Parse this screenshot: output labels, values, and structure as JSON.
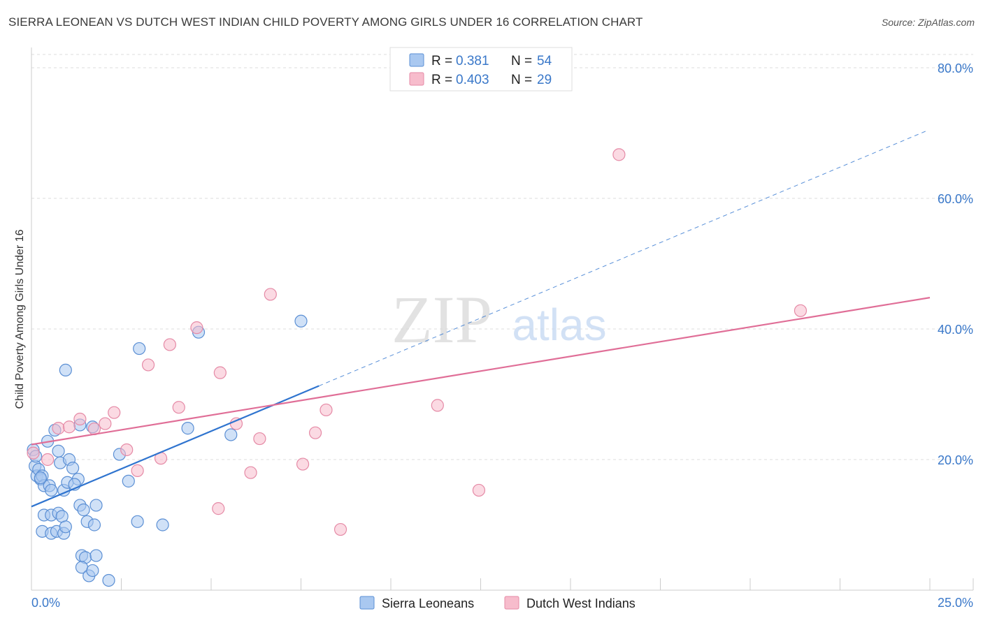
{
  "title": "SIERRA LEONEAN VS DUTCH WEST INDIAN CHILD POVERTY AMONG GIRLS UNDER 16 CORRELATION CHART",
  "source": "Source: ZipAtlas.com",
  "watermark": {
    "zip": "ZIP",
    "atlas": "atlas"
  },
  "colors": {
    "blue_fill": "#a9c8f0",
    "blue_stroke": "#5b8fd4",
    "blue_line": "#2f74cf",
    "pink_fill": "#f7bccc",
    "pink_stroke": "#e58aa6",
    "pink_line": "#e06e97",
    "axis_label": "#3a78c9",
    "grid": "#dddddd"
  },
  "legend": {
    "r_label": "R =",
    "n_label": "N =",
    "rows": [
      {
        "r": "0.381",
        "n": "54"
      },
      {
        "r": "0.403",
        "n": "29"
      }
    ]
  },
  "chart_data": {
    "type": "scatter",
    "title": "SIERRA LEONEAN VS DUTCH WEST INDIAN CHILD POVERTY AMONG GIRLS UNDER 16 CORRELATION CHART",
    "xlabel": "",
    "ylabel": "Child Poverty Among Girls Under 16",
    "xlim": [
      0,
      25
    ],
    "ylim": [
      0,
      80
    ],
    "x_tick_labels": [
      "0.0%",
      "25.0%"
    ],
    "y_ticks": [
      20,
      40,
      60,
      80
    ],
    "y_tick_labels": [
      "20.0%",
      "40.0%",
      "60.0%",
      "80.0%"
    ],
    "series": [
      {
        "name": "Sierra Leoneans",
        "color": "blue",
        "points": [
          [
            0.05,
            21.5
          ],
          [
            0.1,
            19.0
          ],
          [
            0.15,
            17.5
          ],
          [
            0.2,
            18.5
          ],
          [
            0.25,
            17.0
          ],
          [
            0.3,
            17.5
          ],
          [
            0.35,
            16.0
          ],
          [
            0.45,
            22.8
          ],
          [
            0.5,
            16.0
          ],
          [
            0.55,
            15.3
          ],
          [
            0.65,
            24.5
          ],
          [
            0.75,
            21.3
          ],
          [
            0.8,
            19.5
          ],
          [
            0.9,
            15.3
          ],
          [
            1.0,
            16.5
          ],
          [
            1.05,
            20.0
          ],
          [
            1.15,
            18.7
          ],
          [
            1.3,
            17.0
          ],
          [
            0.95,
            33.7
          ],
          [
            0.35,
            11.5
          ],
          [
            0.55,
            11.5
          ],
          [
            0.75,
            11.8
          ],
          [
            0.85,
            11.3
          ],
          [
            0.3,
            9.0
          ],
          [
            0.55,
            8.7
          ],
          [
            0.7,
            9.0
          ],
          [
            0.9,
            8.7
          ],
          [
            0.95,
            9.7
          ],
          [
            1.35,
            13.0
          ],
          [
            1.45,
            12.3
          ],
          [
            1.55,
            10.5
          ],
          [
            1.75,
            10.0
          ],
          [
            1.8,
            13.0
          ],
          [
            1.4,
            5.3
          ],
          [
            1.5,
            5.0
          ],
          [
            1.8,
            5.3
          ],
          [
            1.4,
            3.5
          ],
          [
            1.6,
            2.2
          ],
          [
            1.7,
            3.0
          ],
          [
            2.15,
            1.5
          ],
          [
            2.45,
            20.8
          ],
          [
            2.7,
            16.7
          ],
          [
            2.95,
            10.5
          ],
          [
            3.0,
            37.0
          ],
          [
            3.65,
            10.0
          ],
          [
            4.35,
            24.8
          ],
          [
            4.65,
            39.5
          ],
          [
            5.55,
            23.8
          ],
          [
            7.5,
            41.2
          ],
          [
            1.35,
            25.3
          ],
          [
            1.7,
            25.0
          ],
          [
            0.25,
            17.2
          ],
          [
            0.12,
            20.5
          ],
          [
            1.2,
            16.2
          ]
        ]
      },
      {
        "name": "Dutch West Indians",
        "color": "pink",
        "points": [
          [
            0.05,
            21.0
          ],
          [
            0.45,
            20.0
          ],
          [
            0.75,
            24.8
          ],
          [
            1.05,
            25.0
          ],
          [
            1.35,
            26.2
          ],
          [
            1.75,
            24.7
          ],
          [
            2.05,
            25.5
          ],
          [
            2.3,
            27.2
          ],
          [
            2.65,
            21.5
          ],
          [
            2.95,
            18.3
          ],
          [
            3.25,
            34.5
          ],
          [
            3.6,
            20.2
          ],
          [
            3.85,
            37.6
          ],
          [
            4.1,
            28.0
          ],
          [
            4.6,
            40.2
          ],
          [
            5.2,
            12.5
          ],
          [
            5.25,
            33.3
          ],
          [
            5.7,
            25.5
          ],
          [
            6.1,
            18.0
          ],
          [
            6.35,
            23.2
          ],
          [
            6.65,
            45.3
          ],
          [
            7.55,
            19.3
          ],
          [
            7.9,
            24.1
          ],
          [
            8.2,
            27.6
          ],
          [
            8.6,
            9.3
          ],
          [
            11.3,
            28.3
          ],
          [
            12.45,
            15.3
          ],
          [
            16.35,
            66.7
          ],
          [
            21.4,
            42.8
          ]
        ]
      }
    ],
    "trendlines": [
      {
        "series": "Sierra Leoneans",
        "x_start": 0,
        "y_start": 12.8,
        "x_solid_end": 8.0,
        "x_end": 24.95,
        "slope": 2.31
      },
      {
        "series": "Dutch West Indians",
        "x_start": 0,
        "y_start": 22.3,
        "x_end": 25.0,
        "slope": 0.9
      }
    ]
  },
  "bottom_legend": [
    {
      "label": "Sierra Leoneans",
      "color": "blue"
    },
    {
      "label": "Dutch West Indians",
      "color": "pink"
    }
  ]
}
